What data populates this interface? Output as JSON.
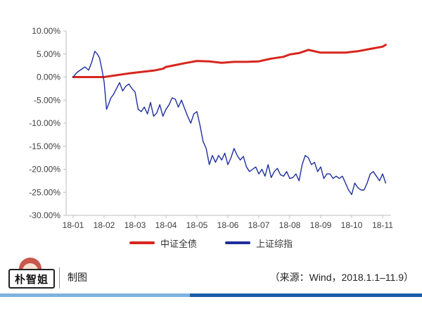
{
  "chart_data": {
    "type": "line",
    "x_labels": [
      "18-01",
      "18-02",
      "18-03",
      "18-04",
      "18-05",
      "18-06",
      "18-07",
      "18-08",
      "18-09",
      "18-10",
      "18-11"
    ],
    "y_tick_labels": [
      "10.00%",
      "5.00%",
      "0.00%",
      "-5.00%",
      "-10.00%",
      "-15.00%",
      "-20.00%",
      "-25.00%",
      "-30.00%"
    ],
    "y_ticks": [
      10,
      5,
      0,
      -5,
      -10,
      -15,
      -20,
      -25,
      -30
    ],
    "ylim": [
      -30,
      10
    ],
    "grid": false,
    "legend_position": "bottom",
    "series": [
      {
        "name": "中证全债",
        "color": "#d7261e",
        "x": [
          0,
          0.5,
          1,
          1.3,
          1.8,
          2.2,
          2.6,
          2.9,
          3.0,
          3.3,
          3.6,
          4.0,
          4.4,
          4.8,
          5.2,
          5.6,
          6.0,
          6.4,
          6.8,
          7.0,
          7.3,
          7.6,
          8.0,
          8.4,
          8.8,
          9.2,
          9.6,
          10.0,
          10.1
        ],
        "y": [
          0,
          0,
          0,
          0.3,
          0.8,
          1.1,
          1.4,
          1.8,
          2.2,
          2.6,
          3.0,
          3.5,
          3.4,
          3.1,
          3.3,
          3.3,
          3.4,
          4.0,
          4.4,
          4.9,
          5.2,
          5.9,
          5.3,
          5.3,
          5.3,
          5.6,
          6.1,
          6.6,
          7.0
        ]
      },
      {
        "name": "上证综指",
        "color": "#1f2f9c",
        "x": [
          0,
          0.12,
          0.25,
          0.38,
          0.5,
          0.6,
          0.7,
          0.78,
          0.85,
          0.92,
          1.0,
          1.08,
          1.15,
          1.22,
          1.3,
          1.4,
          1.5,
          1.6,
          1.7,
          1.8,
          1.9,
          2.0,
          2.1,
          2.2,
          2.3,
          2.4,
          2.5,
          2.6,
          2.7,
          2.8,
          2.9,
          3.0,
          3.1,
          3.2,
          3.3,
          3.4,
          3.5,
          3.6,
          3.7,
          3.8,
          3.9,
          4.0,
          4.1,
          4.2,
          4.3,
          4.4,
          4.5,
          4.6,
          4.7,
          4.8,
          4.9,
          5.0,
          5.1,
          5.2,
          5.3,
          5.4,
          5.5,
          5.6,
          5.7,
          5.8,
          5.9,
          6.0,
          6.1,
          6.2,
          6.3,
          6.4,
          6.5,
          6.6,
          6.7,
          6.8,
          6.9,
          7.0,
          7.1,
          7.2,
          7.3,
          7.4,
          7.5,
          7.6,
          7.7,
          7.8,
          7.9,
          8.0,
          8.1,
          8.2,
          8.3,
          8.4,
          8.5,
          8.6,
          8.7,
          8.8,
          8.9,
          9.0,
          9.1,
          9.2,
          9.3,
          9.4,
          9.5,
          9.6,
          9.7,
          9.8,
          9.9,
          10.0,
          10.1
        ],
        "y": [
          0,
          1.0,
          1.6,
          2.2,
          1.5,
          3.2,
          5.6,
          5.0,
          4.2,
          2.0,
          -1.0,
          -7.0,
          -5.8,
          -4.5,
          -3.8,
          -2.5,
          -1.2,
          -3.0,
          -2.0,
          -1.5,
          -2.5,
          -3.2,
          -7.0,
          -7.5,
          -6.5,
          -8.0,
          -5.5,
          -8.5,
          -7.8,
          -6.0,
          -8.5,
          -7.0,
          -6.0,
          -4.5,
          -4.8,
          -6.5,
          -5.0,
          -6.8,
          -8.5,
          -10.0,
          -8.0,
          -7.5,
          -10.5,
          -14.0,
          -15.5,
          -19.0,
          -17.0,
          -18.5,
          -17.0,
          -18.0,
          -16.5,
          -19.0,
          -17.5,
          -15.5,
          -17.0,
          -18.0,
          -17.2,
          -19.5,
          -20.5,
          -20.0,
          -19.5,
          -21.0,
          -20.0,
          -21.5,
          -19.0,
          -21.8,
          -20.5,
          -19.8,
          -21.2,
          -21.5,
          -20.5,
          -22.0,
          -21.8,
          -21.0,
          -22.5,
          -19.0,
          -17.0,
          -17.5,
          -19.0,
          -18.5,
          -20.5,
          -19.5,
          -22.0,
          -21.0,
          -21.0,
          -22.0,
          -21.5,
          -22.0,
          -21.5,
          -23.0,
          -24.5,
          -25.5,
          -23.0,
          -24.0,
          -24.5,
          -24.5,
          -23.0,
          -21.0,
          -20.5,
          -21.5,
          -22.5,
          -21.0,
          -23.0
        ]
      }
    ]
  },
  "footer": {
    "logo_text": "朴智姐",
    "made_by": "制图",
    "source": "（来源：Wind，2018.1.1–11.9）"
  }
}
